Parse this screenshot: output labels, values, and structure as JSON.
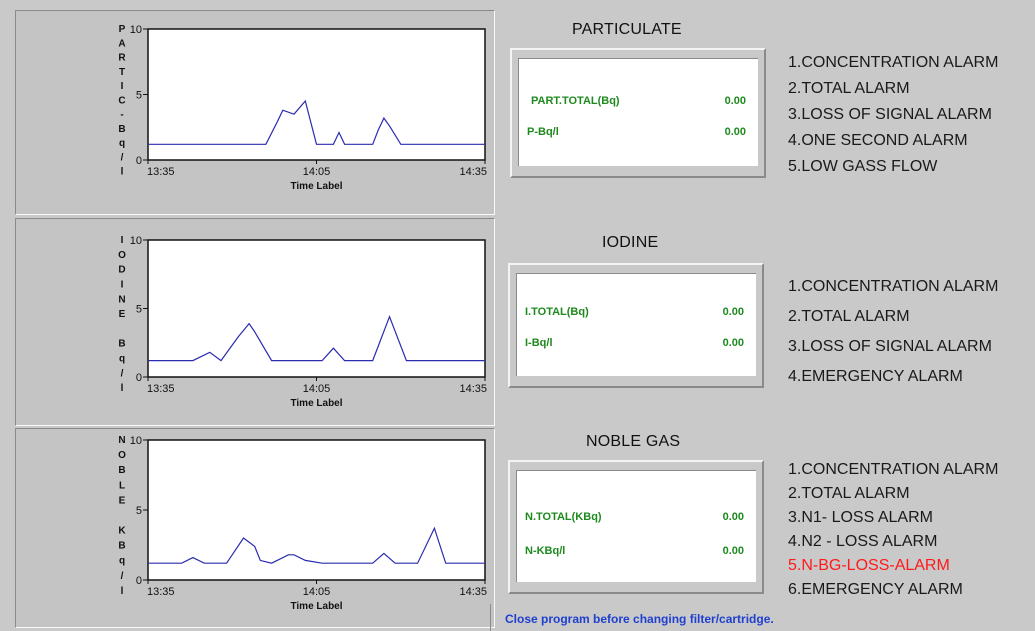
{
  "footer": {
    "message": "Close program before changing filter/cartridge."
  },
  "panels": [
    {
      "key": "particulate",
      "section_title": "PARTICULATE",
      "readouts": [
        {
          "label": "PART.TOTAL(Bq)",
          "value": "0.00"
        },
        {
          "label": "P-Bq/l",
          "value": "0.00"
        }
      ],
      "alarms": [
        {
          "text": "1.CONCENTRATION ALARM",
          "active": false
        },
        {
          "text": "2.TOTAL ALARM",
          "active": false
        },
        {
          "text": "3.LOSS OF SIGNAL ALARM",
          "active": false
        },
        {
          "text": "4.ONE SECOND ALARM",
          "active": false
        },
        {
          "text": "5.LOW GASS FLOW",
          "active": false
        }
      ]
    },
    {
      "key": "iodine",
      "section_title": "IODINE",
      "readouts": [
        {
          "label": "I.TOTAL(Bq)",
          "value": "0.00"
        },
        {
          "label": "I-Bq/l",
          "value": "0.00"
        }
      ],
      "alarms": [
        {
          "text": "1.CONCENTRATION ALARM",
          "active": false
        },
        {
          "text": "2.TOTAL ALARM",
          "active": false
        },
        {
          "text": "3.LOSS OF SIGNAL ALARM",
          "active": false
        },
        {
          "text": "4.EMERGENCY ALARM",
          "active": false
        }
      ]
    },
    {
      "key": "noble-gas",
      "section_title": "NOBLE GAS",
      "readouts": [
        {
          "label": "N.TOTAL(KBq)",
          "value": "0.00"
        },
        {
          "label": "N-KBq/l",
          "value": "0.00"
        }
      ],
      "alarms": [
        {
          "text": "1.CONCENTRATION ALARM",
          "active": false
        },
        {
          "text": "2.TOTAL ALARM",
          "active": false
        },
        {
          "text": "3.N1- LOSS ALARM",
          "active": false
        },
        {
          "text": "4.N2 - LOSS ALARM",
          "active": false
        },
        {
          "text": "5.N-BG-LOSS-ALARM",
          "active": true
        },
        {
          "text": "6.EMERGENCY ALARM",
          "active": false
        }
      ]
    }
  ],
  "colors": {
    "line": "#2b2bb0",
    "readout_text": "#1e8a1e",
    "alarm_active": "#ff1a1a",
    "footer_text": "#1f3fcf"
  },
  "chart_data": [
    {
      "type": "line",
      "ylabel": "PARTIC-Bq/l",
      "xlabel": "Time Label",
      "x_tick_labels": [
        "13:35",
        "14:05",
        "14:35"
      ],
      "ylim": [
        0,
        10
      ],
      "y_ticks": [
        0,
        5,
        10
      ],
      "xlim": [
        0,
        60
      ],
      "grid": false,
      "series": [
        {
          "x": [
            0,
            21,
            23,
            24,
            26,
            28,
            30,
            33,
            34,
            35,
            38,
            40,
            41,
            42,
            43,
            45,
            60
          ],
          "y": [
            1.2,
            1.2,
            2.9,
            3.8,
            3.5,
            4.5,
            1.2,
            1.2,
            2.1,
            1.2,
            1.2,
            1.2,
            2.3,
            3.2,
            2.6,
            1.2,
            1.2
          ]
        }
      ]
    },
    {
      "type": "line",
      "ylabel": "IODINE Bq/l",
      "xlabel": "Time Label",
      "x_tick_labels": [
        "13:35",
        "14:05",
        "14:35"
      ],
      "ylim": [
        0,
        10
      ],
      "y_ticks": [
        0,
        5,
        10
      ],
      "xlim": [
        0,
        60
      ],
      "grid": false,
      "series": [
        {
          "x": [
            0,
            8,
            11,
            13,
            16,
            18,
            19,
            22,
            28,
            31,
            33,
            35,
            40,
            43,
            46,
            60
          ],
          "y": [
            1.2,
            1.2,
            1.8,
            1.2,
            2.9,
            3.9,
            3.3,
            1.2,
            1.2,
            1.2,
            2.1,
            1.2,
            1.2,
            4.4,
            1.2,
            1.2
          ]
        }
      ]
    },
    {
      "type": "line",
      "ylabel": "NOBLE KBq/l",
      "xlabel": "Time Label",
      "x_tick_labels": [
        "13:35",
        "14:05",
        "14:35"
      ],
      "ylim": [
        0,
        10
      ],
      "y_ticks": [
        0,
        5,
        10
      ],
      "xlim": [
        0,
        60
      ],
      "grid": false,
      "series": [
        {
          "x": [
            0,
            6,
            8,
            10,
            14,
            17,
            19,
            20,
            22,
            25,
            26,
            28,
            31,
            34,
            40,
            42,
            44,
            48,
            51,
            53,
            60
          ],
          "y": [
            1.2,
            1.2,
            1.6,
            1.2,
            1.2,
            3.0,
            2.4,
            1.4,
            1.2,
            1.8,
            1.8,
            1.4,
            1.2,
            1.2,
            1.2,
            1.9,
            1.2,
            1.2,
            3.7,
            1.2,
            1.2
          ]
        }
      ]
    }
  ]
}
